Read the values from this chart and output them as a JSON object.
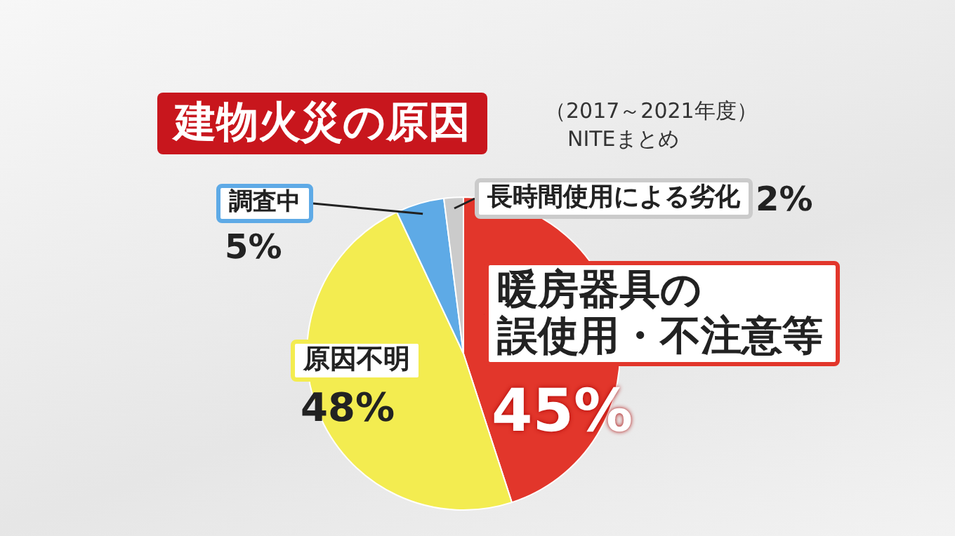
{
  "chart_data": {
    "type": "pie",
    "title": "建物火災の原因",
    "subtitle": "（2017～2021年度）",
    "annotations": [
      "NITEまとめ"
    ],
    "categories": [
      "暖房器具の誤使用・不注意等",
      "原因不明",
      "調査中",
      "長時間使用による劣化"
    ],
    "values": [
      45,
      48,
      5,
      2
    ],
    "colors": [
      "#e2362b",
      "#f3ec50",
      "#5eaae6",
      "#cbcbcb"
    ],
    "value_labels": [
      "45%",
      "48%",
      "5%",
      "2%"
    ],
    "legend": false
  }
}
